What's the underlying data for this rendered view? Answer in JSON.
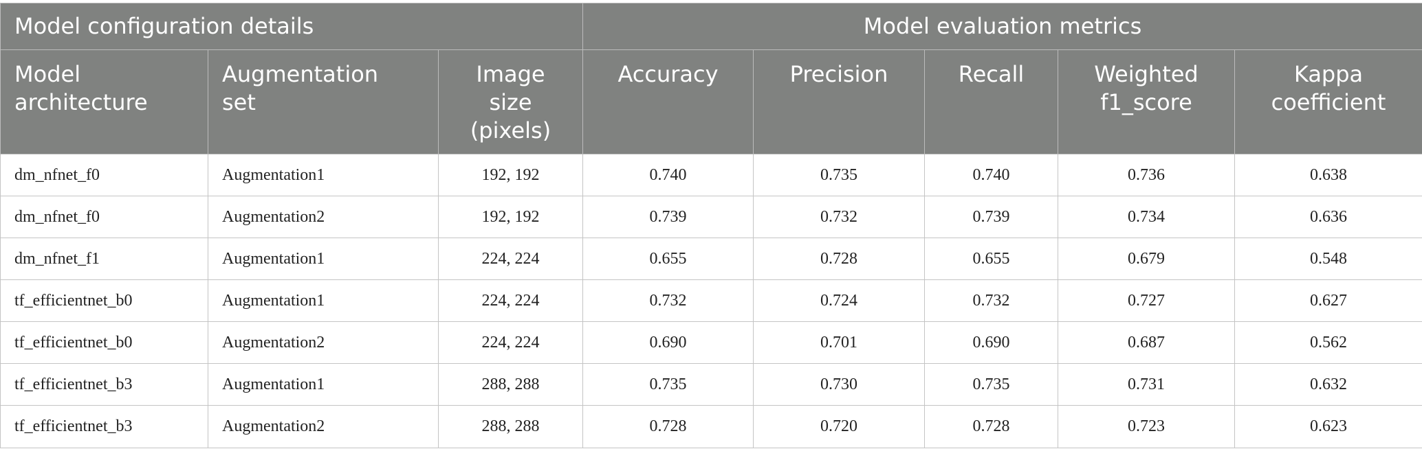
{
  "table": {
    "group_headers": [
      {
        "label": "Model configuration details",
        "colspan": 3
      },
      {
        "label": "Model evaluation metrics",
        "colspan": 5
      }
    ],
    "column_headers": [
      [
        "Model",
        "architecture"
      ],
      [
        "Augmentation",
        "set"
      ],
      [
        "Image",
        "size",
        "(pixels)"
      ],
      [
        "Accuracy"
      ],
      [
        "Precision"
      ],
      [
        "Recall"
      ],
      [
        "Weighted",
        "f1_score"
      ],
      [
        "Kappa",
        "coefficient"
      ]
    ],
    "rows": [
      [
        "dm_nfnet_f0",
        "Augmentation1",
        "192, 192",
        "0.740",
        "0.735",
        "0.740",
        "0.736",
        "0.638"
      ],
      [
        "dm_nfnet_f0",
        "Augmentation2",
        "192, 192",
        "0.739",
        "0.732",
        "0.739",
        "0.734",
        "0.636"
      ],
      [
        "dm_nfnet_f1",
        "Augmentation1",
        "224, 224",
        "0.655",
        "0.728",
        "0.655",
        "0.679",
        "0.548"
      ],
      [
        "tf_efficientnet_b0",
        "Augmentation1",
        "224, 224",
        "0.732",
        "0.724",
        "0.732",
        "0.727",
        "0.627"
      ],
      [
        "tf_efficientnet_b0",
        "Augmentation2",
        "224, 224",
        "0.690",
        "0.701",
        "0.690",
        "0.687",
        "0.562"
      ],
      [
        "tf_efficientnet_b3",
        "Augmentation1",
        "288, 288",
        "0.735",
        "0.730",
        "0.735",
        "0.731",
        "0.632"
      ],
      [
        "tf_efficientnet_b3",
        "Augmentation2",
        "288, 288",
        "0.728",
        "0.720",
        "0.728",
        "0.723",
        "0.623"
      ]
    ]
  },
  "colors": {
    "header_background": "#808280",
    "header_text": "#ffffff",
    "grid_line": "#c4c4c4"
  }
}
